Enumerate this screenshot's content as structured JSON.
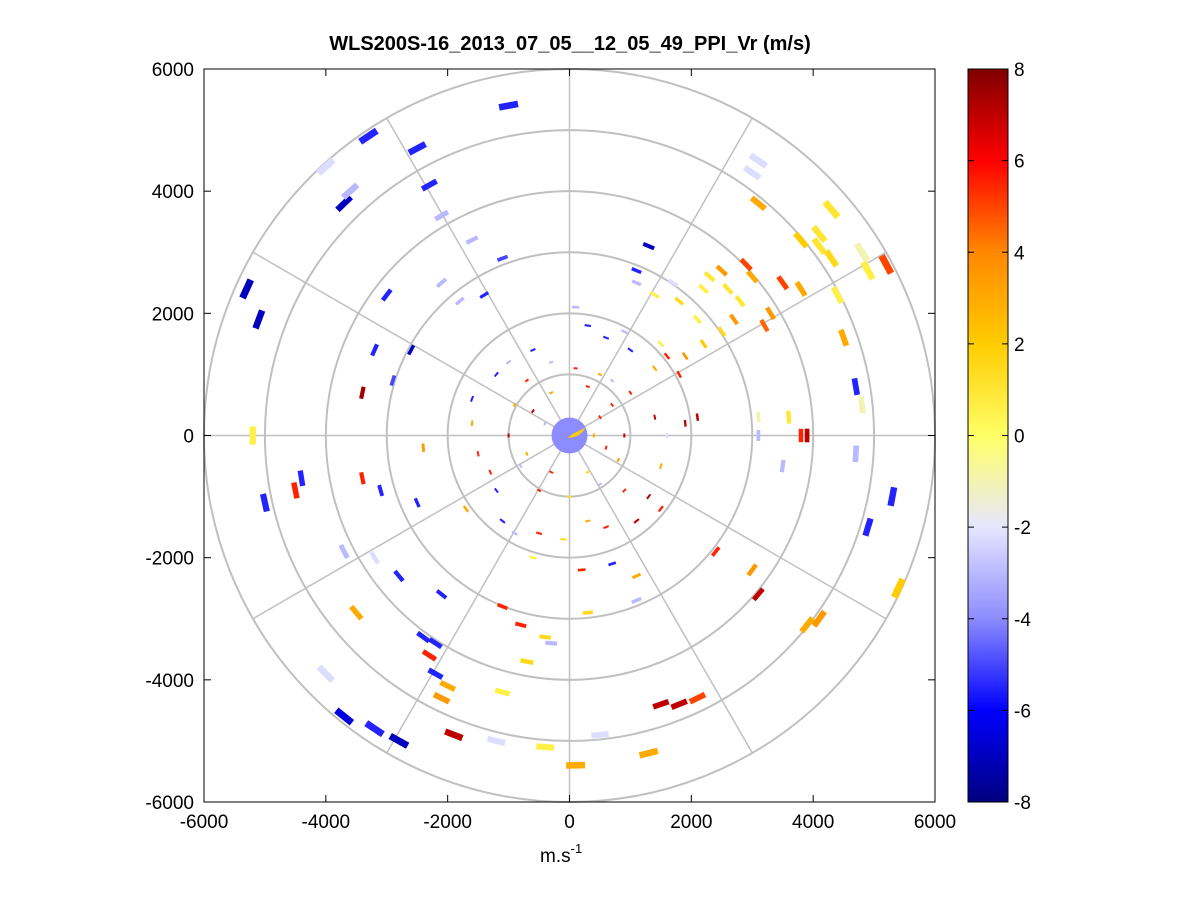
{
  "chart_data": {
    "type": "scatter",
    "subtype": "polar-ppi",
    "title": "WLS200S-16_2013_07_05__12_05_49_PPI_Vr (m/s)",
    "xlabel_base": "m.s",
    "xlabel_sup": "-1",
    "ylabel": "",
    "xlim": [
      -6000,
      6000
    ],
    "ylim": [
      -6000,
      6000
    ],
    "xticks": [
      -6000,
      -4000,
      -2000,
      0,
      2000,
      4000,
      6000
    ],
    "yticks": [
      -6000,
      -4000,
      -2000,
      0,
      2000,
      4000,
      6000
    ],
    "range_rings": [
      1000,
      2000,
      3000,
      4000,
      5000,
      6000
    ],
    "spokes_deg": [
      0,
      30,
      60,
      90,
      120,
      150,
      180,
      210,
      240,
      270,
      300,
      330
    ],
    "colorbar": {
      "min": -8,
      "max": 8,
      "ticks": [
        -8,
        -6,
        -4,
        -2,
        0,
        2,
        4,
        6,
        8
      ],
      "colormap": [
        "#00007f",
        "#0000ff",
        "#8c8cff",
        "#e6e6ff",
        "#ffff66",
        "#ffcc00",
        "#ff8800",
        "#ff0000",
        "#7f0000"
      ]
    },
    "points": [
      {
        "x": -1000,
        "y": 5400,
        "v": -5.5
      },
      {
        "x": -3300,
        "y": 4900,
        "v": -5.5
      },
      {
        "x": -2500,
        "y": 4700,
        "v": -5.5
      },
      {
        "x": -4000,
        "y": 4400,
        "v": -2.2
      },
      {
        "x": -3700,
        "y": 3800,
        "v": -7.0
      },
      {
        "x": -3600,
        "y": 4000,
        "v": -3.0
      },
      {
        "x": -2300,
        "y": 4100,
        "v": -5.5
      },
      {
        "x": -2100,
        "y": 3600,
        "v": -3.0
      },
      {
        "x": -1600,
        "y": 3200,
        "v": -3.0
      },
      {
        "x": -1100,
        "y": 2900,
        "v": -5.0
      },
      {
        "x": -1400,
        "y": 2300,
        "v": -5.5
      },
      {
        "x": -1800,
        "y": 2200,
        "v": -3.0
      },
      {
        "x": -2100,
        "y": 2500,
        "v": -3.0
      },
      {
        "x": -3000,
        "y": 2300,
        "v": -5.5
      },
      {
        "x": -5300,
        "y": 2400,
        "v": -7.0
      },
      {
        "x": -5100,
        "y": 1900,
        "v": -7.0
      },
      {
        "x": -3200,
        "y": 1400,
        "v": -5.5
      },
      {
        "x": -2600,
        "y": 1400,
        "v": -7.0
      },
      {
        "x": -3400,
        "y": 700,
        "v": 7.5
      },
      {
        "x": -2900,
        "y": 900,
        "v": -5.0
      },
      {
        "x": -5200,
        "y": 0,
        "v": 0.6
      },
      {
        "x": -4400,
        "y": -700,
        "v": -5.5
      },
      {
        "x": -5000,
        "y": -1100,
        "v": -5.5
      },
      {
        "x": -4500,
        "y": -900,
        "v": 5.5
      },
      {
        "x": -3400,
        "y": -700,
        "v": 5.5
      },
      {
        "x": -3100,
        "y": -900,
        "v": -5.5
      },
      {
        "x": -2500,
        "y": -1100,
        "v": -5.5
      },
      {
        "x": -2400,
        "y": -200,
        "v": 3.5
      },
      {
        "x": -3700,
        "y": -1900,
        "v": -3.0
      },
      {
        "x": -3200,
        "y": -2000,
        "v": -2.2
      },
      {
        "x": -2800,
        "y": -2300,
        "v": -5.5
      },
      {
        "x": -3500,
        "y": -2900,
        "v": 3.0
      },
      {
        "x": -2100,
        "y": -2600,
        "v": -5.5
      },
      {
        "x": -2400,
        "y": -3300,
        "v": -5.5
      },
      {
        "x": -2200,
        "y": -3400,
        "v": -5.5
      },
      {
        "x": -2300,
        "y": -3600,
        "v": 5.5
      },
      {
        "x": -2200,
        "y": -3900,
        "v": -5.5
      },
      {
        "x": -2000,
        "y": -4100,
        "v": 3.0
      },
      {
        "x": -2100,
        "y": -4300,
        "v": 3.5
      },
      {
        "x": -4000,
        "y": -3900,
        "v": -2.2
      },
      {
        "x": -3700,
        "y": -4600,
        "v": -6.5
      },
      {
        "x": -3200,
        "y": -4800,
        "v": -5.5
      },
      {
        "x": -2800,
        "y": -5000,
        "v": -7.0
      },
      {
        "x": -1900,
        "y": -4900,
        "v": 7.0
      },
      {
        "x": -1200,
        "y": -5000,
        "v": -2.2
      },
      {
        "x": -1100,
        "y": -4200,
        "v": 0.6
      },
      {
        "x": -400,
        "y": -5100,
        "v": 0.6
      },
      {
        "x": 100,
        "y": -5400,
        "v": 3.0
      },
      {
        "x": 500,
        "y": -4900,
        "v": -2.2
      },
      {
        "x": 1300,
        "y": -5200,
        "v": 3.0
      },
      {
        "x": 1500,
        "y": -4400,
        "v": 7.0
      },
      {
        "x": 1800,
        "y": -4400,
        "v": 7.0
      },
      {
        "x": 2100,
        "y": -4300,
        "v": 5.0
      },
      {
        "x": -700,
        "y": -3700,
        "v": 1.5
      },
      {
        "x": -400,
        "y": -3300,
        "v": 1.5
      },
      {
        "x": -300,
        "y": -3400,
        "v": -3.0
      },
      {
        "x": -800,
        "y": -3100,
        "v": 5.5
      },
      {
        "x": -1100,
        "y": -2800,
        "v": 5.5
      },
      {
        "x": 300,
        "y": -2900,
        "v": 1.5
      },
      {
        "x": 1100,
        "y": -2700,
        "v": -3.0
      },
      {
        "x": 1100,
        "y": -2300,
        "v": 3.0
      },
      {
        "x": 200,
        "y": -2200,
        "v": 5.5
      },
      {
        "x": 700,
        "y": -2100,
        "v": -5.5
      },
      {
        "x": -600,
        "y": -2000,
        "v": 0.6
      },
      {
        "x": 2400,
        "y": -1900,
        "v": 5.5
      },
      {
        "x": 3000,
        "y": -2200,
        "v": 3.5
      },
      {
        "x": 3100,
        "y": -2600,
        "v": 7.0
      },
      {
        "x": 3900,
        "y": -3100,
        "v": 3.0
      },
      {
        "x": 4100,
        "y": -3000,
        "v": 3.5
      },
      {
        "x": 5400,
        "y": -2500,
        "v": 2.0
      },
      {
        "x": 4900,
        "y": -1500,
        "v": -5.5
      },
      {
        "x": 5300,
        "y": -1000,
        "v": -5.5
      },
      {
        "x": 4700,
        "y": -300,
        "v": -3.0
      },
      {
        "x": 3500,
        "y": -500,
        "v": -3.0
      },
      {
        "x": 3800,
        "y": 0,
        "v": 5.5
      },
      {
        "x": 3900,
        "y": 0,
        "v": 7.0
      },
      {
        "x": 3100,
        "y": 0,
        "v": -3.0
      },
      {
        "x": 3100,
        "y": 300,
        "v": -1.0
      },
      {
        "x": 3600,
        "y": 300,
        "v": 1.0
      },
      {
        "x": 4800,
        "y": 500,
        "v": -1.0
      },
      {
        "x": 4700,
        "y": 800,
        "v": -5.5
      },
      {
        "x": 4500,
        "y": 1600,
        "v": 3.0
      },
      {
        "x": 3200,
        "y": 1800,
        "v": 4.5
      },
      {
        "x": 3300,
        "y": 2000,
        "v": 3.5
      },
      {
        "x": 3500,
        "y": 2500,
        "v": 5.0
      },
      {
        "x": 3800,
        "y": 2400,
        "v": 3.0
      },
      {
        "x": 3000,
        "y": 2600,
        "v": 3.0
      },
      {
        "x": 2900,
        "y": 2800,
        "v": 5.0
      },
      {
        "x": 2500,
        "y": 2700,
        "v": 3.5
      },
      {
        "x": 2300,
        "y": 2600,
        "v": 1.0
      },
      {
        "x": 2200,
        "y": 2400,
        "v": 0.6
      },
      {
        "x": 2600,
        "y": 2400,
        "v": 1.0
      },
      {
        "x": 2800,
        "y": 2200,
        "v": 1.0
      },
      {
        "x": 2700,
        "y": 1900,
        "v": 3.5
      },
      {
        "x": 2500,
        "y": 1700,
        "v": 1.5
      },
      {
        "x": 2100,
        "y": 1900,
        "v": 0.6
      },
      {
        "x": 2200,
        "y": 1500,
        "v": 2.0
      },
      {
        "x": 1900,
        "y": 1300,
        "v": 3.5
      },
      {
        "x": 3800,
        "y": 3200,
        "v": 2.0
      },
      {
        "x": 4100,
        "y": 3100,
        "v": 1.0
      },
      {
        "x": 4300,
        "y": 2900,
        "v": 1.5
      },
      {
        "x": 4100,
        "y": 3300,
        "v": 1.0
      },
      {
        "x": 4800,
        "y": 3000,
        "v": -1.0
      },
      {
        "x": 4900,
        "y": 2700,
        "v": 0.6
      },
      {
        "x": 4400,
        "y": 2300,
        "v": 0.6
      },
      {
        "x": 4300,
        "y": 3700,
        "v": 1.0
      },
      {
        "x": 3100,
        "y": 3800,
        "v": 3.0
      },
      {
        "x": 3000,
        "y": 4300,
        "v": -2.2
      },
      {
        "x": 3100,
        "y": 4500,
        "v": -2.2
      },
      {
        "x": 5200,
        "y": 2800,
        "v": 5.0
      },
      {
        "x": 1300,
        "y": 3100,
        "v": -7.0
      },
      {
        "x": 1100,
        "y": 2700,
        "v": -5.5
      },
      {
        "x": 1100,
        "y": 2500,
        "v": -3.0
      },
      {
        "x": 1700,
        "y": 2500,
        "v": -2.2
      },
      {
        "x": 1400,
        "y": 2300,
        "v": 0.6
      },
      {
        "x": 1800,
        "y": 2200,
        "v": 1.5
      },
      {
        "x": 1500,
        "y": 1500,
        "v": 0.6
      },
      {
        "x": 1600,
        "y": 1300,
        "v": 5.5
      },
      {
        "x": 1800,
        "y": 1000,
        "v": 5.5
      },
      {
        "x": 1400,
        "y": 1100,
        "v": 3.0
      },
      {
        "x": 1000,
        "y": 1400,
        "v": -5.5
      },
      {
        "x": 900,
        "y": 1700,
        "v": -3.0
      },
      {
        "x": 600,
        "y": 1600,
        "v": -5.5
      },
      {
        "x": 300,
        "y": 1800,
        "v": -5.5
      },
      {
        "x": 100,
        "y": 2100,
        "v": -3.0
      },
      {
        "x": -600,
        "y": 1400,
        "v": -5.5
      },
      {
        "x": -1000,
        "y": 1200,
        "v": -3.0
      },
      {
        "x": -1200,
        "y": 1000,
        "v": -5.5
      },
      {
        "x": -1600,
        "y": 600,
        "v": -5.5
      },
      {
        "x": -1500,
        "y": -300,
        "v": 5.5
      },
      {
        "x": -1600,
        "y": 200,
        "v": 3.0
      },
      {
        "x": -1300,
        "y": -600,
        "v": 5.5
      },
      {
        "x": -1200,
        "y": -900,
        "v": -5.5
      },
      {
        "x": -1700,
        "y": -1200,
        "v": 3.0
      },
      {
        "x": -1100,
        "y": -1400,
        "v": -5.5
      },
      {
        "x": -900,
        "y": -1600,
        "v": -3.0
      },
      {
        "x": -500,
        "y": -1600,
        "v": 5.5
      },
      {
        "x": -100,
        "y": -1700,
        "v": 1.5
      },
      {
        "x": 300,
        "y": -1400,
        "v": 3.0
      },
      {
        "x": 600,
        "y": -1500,
        "v": 5.5
      },
      {
        "x": 1100,
        "y": -1400,
        "v": 7.0
      },
      {
        "x": 1500,
        "y": -1200,
        "v": 5.5
      },
      {
        "x": 1300,
        "y": -1000,
        "v": 7.0
      },
      {
        "x": 900,
        "y": -900,
        "v": 5.5
      },
      {
        "x": 1500,
        "y": -500,
        "v": 3.0
      },
      {
        "x": 1600,
        "y": 0,
        "v": -2.2
      },
      {
        "x": 1400,
        "y": 300,
        "v": 7.0
      },
      {
        "x": 1900,
        "y": 200,
        "v": 7.0
      },
      {
        "x": 2100,
        "y": 300,
        "v": 7.0
      },
      {
        "x": 1000,
        "y": 700,
        "v": 5.5
      },
      {
        "x": 700,
        "y": 900,
        "v": -3.0
      },
      {
        "x": 500,
        "y": 1000,
        "v": 3.0
      },
      {
        "x": 100,
        "y": 1100,
        "v": 5.5
      },
      {
        "x": -300,
        "y": 1200,
        "v": -3.0
      },
      {
        "x": -700,
        "y": 900,
        "v": 5.5
      },
      {
        "x": -900,
        "y": 500,
        "v": 3.0
      },
      {
        "x": -1000,
        "y": 0,
        "v": 7.0
      },
      {
        "x": -800,
        "y": -500,
        "v": -3.0
      },
      {
        "x": -500,
        "y": -900,
        "v": 5.5
      },
      {
        "x": 0,
        "y": -1000,
        "v": 1.5
      },
      {
        "x": 500,
        "y": -800,
        "v": -3.0
      },
      {
        "x": 800,
        "y": -400,
        "v": 3.5
      },
      {
        "x": 900,
        "y": 0,
        "v": 7.0
      },
      {
        "x": 700,
        "y": 500,
        "v": 5.5
      },
      {
        "x": 300,
        "y": 800,
        "v": 5.5
      },
      {
        "x": -300,
        "y": 700,
        "v": 3.0
      },
      {
        "x": -600,
        "y": 400,
        "v": 7.0
      },
      {
        "x": -700,
        "y": -300,
        "v": 3.0
      },
      {
        "x": -300,
        "y": -600,
        "v": 5.5
      },
      {
        "x": 300,
        "y": -600,
        "v": 1.5
      },
      {
        "x": 600,
        "y": -200,
        "v": 5.5
      },
      {
        "x": 500,
        "y": 300,
        "v": 5.5
      },
      {
        "x": -400,
        "y": 200,
        "v": -3.0
      },
      {
        "x": 400,
        "y": 0,
        "v": 3.0
      }
    ]
  }
}
